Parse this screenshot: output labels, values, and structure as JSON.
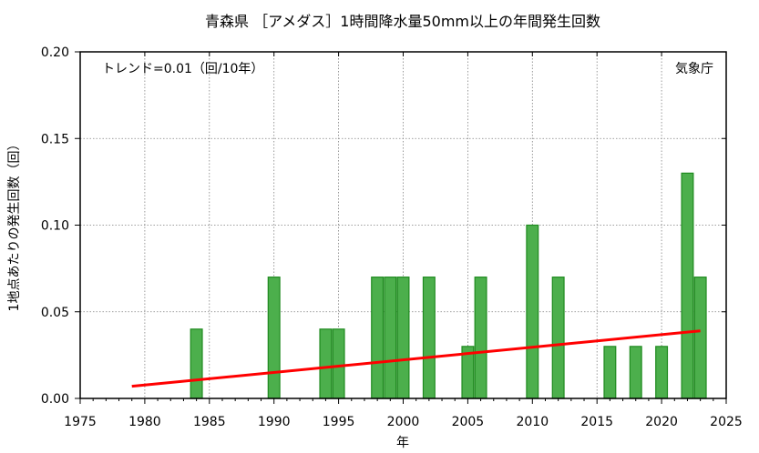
{
  "chart_data": {
    "type": "bar",
    "title": "青森県 ［アメダス］1時間降水量50mm以上の年間発生回数",
    "xlabel": "年",
    "ylabel": "1地点あたりの発生回数（回）",
    "trend_label": "トレンド=0.01（回/10年）",
    "source_label": "気象庁",
    "xlim": [
      1975,
      2025
    ],
    "ylim": [
      0,
      0.2
    ],
    "x_ticks": [
      1975,
      1980,
      1985,
      1990,
      1995,
      2000,
      2005,
      2010,
      2015,
      2020,
      2025
    ],
    "y_ticks": [
      0,
      0.05,
      0.1,
      0.15,
      0.2
    ],
    "y_tick_labels": [
      "0.00",
      "0.05",
      "0.10",
      "0.15",
      "0.20"
    ],
    "grid": true,
    "x": [
      1979,
      1980,
      1981,
      1982,
      1983,
      1984,
      1985,
      1986,
      1987,
      1988,
      1989,
      1990,
      1991,
      1992,
      1993,
      1994,
      1995,
      1996,
      1997,
      1998,
      1999,
      2000,
      2001,
      2002,
      2003,
      2004,
      2005,
      2006,
      2007,
      2008,
      2009,
      2010,
      2011,
      2012,
      2013,
      2014,
      2015,
      2016,
      2017,
      2018,
      2019,
      2020,
      2021,
      2022,
      2023
    ],
    "values": [
      0,
      0,
      0,
      0,
      0,
      0.04,
      0,
      0,
      0,
      0,
      0,
      0.07,
      0,
      0,
      0,
      0.04,
      0.04,
      0,
      0,
      0.07,
      0.07,
      0.07,
      0,
      0.07,
      0,
      0,
      0.03,
      0.07,
      0,
      0,
      0,
      0.1,
      0,
      0.07,
      0,
      0,
      0,
      0.03,
      0,
      0.03,
      0,
      0.03,
      0,
      0.13,
      0.07
    ],
    "trend_line": {
      "x": [
        1979,
        2023
      ],
      "y": [
        0.007,
        0.039
      ]
    },
    "colors": {
      "bar_fill": "#4caf4c",
      "bar_stroke": "#1f8a1f",
      "trend": "#ff0000",
      "grid": "#808080"
    }
  }
}
